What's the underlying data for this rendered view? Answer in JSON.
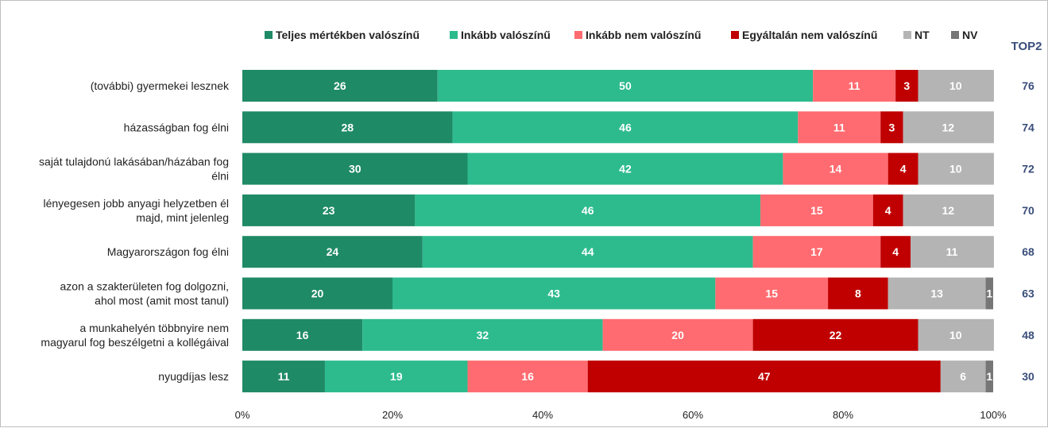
{
  "chart_data": {
    "type": "bar",
    "orientation": "horizontal",
    "stacked": true,
    "categories": [
      "(további) gyermekei lesznek",
      "házasságban fog élni",
      "saját tulajdonú lakásában/házában fog élni",
      "lényegesen jobb anyagi helyzetben él majd, mint jelenleg",
      "Magyarországon fog élni",
      "azon a szakterületen fog dolgozni, ahol most (amit most tanul)",
      "a munkahelyén többnyire nem magyarul fog beszélgetni a kollégáival",
      "nyugdíjas lesz"
    ],
    "category_lines": [
      [
        "(további) gyermekei lesznek"
      ],
      [
        "házasságban fog élni"
      ],
      [
        "saját tulajdonú lakásában/házában fog",
        "élni"
      ],
      [
        "lényegesen jobb anyagi helyzetben él",
        "majd, mint jelenleg"
      ],
      [
        "Magyarországon fog élni"
      ],
      [
        "azon a szakterületen fog dolgozni,",
        "ahol most (amit most tanul)"
      ],
      [
        "a munkahelyén többnyire nem",
        "magyarul fog beszélgetni a kollégáival"
      ],
      [
        "nyugdíjas lesz"
      ]
    ],
    "series": [
      {
        "name": "Teljes mértékben valószínű",
        "color": "#1f8a66",
        "values": [
          26,
          28,
          30,
          23,
          24,
          20,
          16,
          11
        ]
      },
      {
        "name": "Inkább valószínű",
        "color": "#2dbb8e",
        "values": [
          50,
          46,
          42,
          46,
          44,
          43,
          32,
          19
        ]
      },
      {
        "name": "Inkább nem valószínű",
        "color": "#ff6b70",
        "values": [
          11,
          11,
          14,
          15,
          17,
          15,
          20,
          16
        ]
      },
      {
        "name": "Egyáltalán nem valószínű",
        "color": "#c00000",
        "values": [
          3,
          3,
          4,
          4,
          4,
          8,
          22,
          47
        ]
      },
      {
        "name": "NT",
        "color": "#b4b4b4",
        "values": [
          10,
          12,
          10,
          12,
          11,
          13,
          10,
          6
        ]
      },
      {
        "name": "NV",
        "color": "#767676",
        "values": [
          0.5,
          0.3,
          0.5,
          0.3,
          0.5,
          1,
          0.3,
          1
        ]
      }
    ],
    "value_labels": [
      [
        "26",
        "50",
        "11",
        "3",
        "10",
        ""
      ],
      [
        "28",
        "46",
        "11",
        "3",
        "12",
        ""
      ],
      [
        "30",
        "42",
        "14",
        "4",
        "10",
        ""
      ],
      [
        "23",
        "46",
        "15",
        "4",
        "12",
        ""
      ],
      [
        "24",
        "44",
        "17",
        "4",
        "11",
        ""
      ],
      [
        "20",
        "43",
        "15",
        "8",
        "13",
        "1"
      ],
      [
        "16",
        "32",
        "20",
        "22",
        "10",
        ""
      ],
      [
        "11",
        "19",
        "16",
        "47",
        "6",
        "1"
      ]
    ],
    "top2_label": "TOP2",
    "top2": [
      76,
      74,
      72,
      70,
      68,
      63,
      48,
      30
    ],
    "x_ticks": [
      "0%",
      "20%",
      "40%",
      "60%",
      "80%",
      "100%"
    ],
    "xlim": [
      0,
      100
    ],
    "legend_position": "top",
    "grid": false
  }
}
